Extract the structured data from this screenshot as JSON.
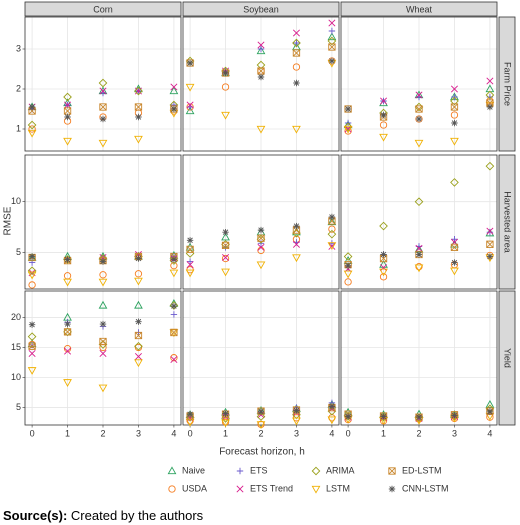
{
  "chart_data": {
    "type": "scatter",
    "xlabel": "Forecast horizon, h",
    "ylabel": "RMSE",
    "columns": [
      "Corn",
      "Soybean",
      "Wheat"
    ],
    "rows": [
      "Farm Price",
      "Harvested area",
      "Yield"
    ],
    "x": [
      0,
      1,
      2,
      3,
      4
    ],
    "xlim": [
      -0.2,
      4.2
    ],
    "xticks": [
      0,
      1,
      2,
      3,
      4
    ],
    "row_scales": [
      {
        "ylim": [
          0.45,
          3.8
        ],
        "yticks": [
          1,
          2,
          3
        ]
      },
      {
        "ylim": [
          1.4,
          14.6
        ],
        "yticks": [
          5,
          10
        ]
      },
      {
        "ylim": [
          2.1,
          24.4
        ],
        "yticks": [
          5,
          10,
          15,
          20
        ]
      }
    ],
    "grid": true,
    "series": [
      {
        "name": "Naive",
        "color": "#2ca25f",
        "marker": "triangle-up",
        "values": [
          [
            [
              1.55,
              1.65,
              1.95,
              2.0,
              1.95
            ],
            [
              1.45,
              2.4,
              2.95,
              3.05,
              3.3
            ],
            [
              1.1,
              1.65,
              1.85,
              1.8,
              2.0
            ]
          ],
          [
            [
              4.5,
              4.6,
              4.6,
              4.6,
              4.7
            ],
            [
              5.5,
              6.5,
              7.0,
              7.0,
              8.0
            ],
            [
              4.2,
              3.8,
              5.3,
              5.8,
              6.9
            ]
          ],
          [
            [
              15.6,
              20.0,
              22.0,
              22.0,
              22.3
            ],
            [
              3.8,
              4.2,
              4.5,
              4.8,
              5.5
            ],
            [
              4.2,
              3.8,
              3.9,
              3.8,
              5.5
            ]
          ]
        ]
      },
      {
        "name": "USDA",
        "color": "#f57c1f",
        "marker": "circle",
        "values": [
          [
            [
              1.0,
              1.2,
              1.3,
              1.4,
              1.45
            ],
            [
              1.55,
              2.05,
              2.45,
              2.55,
              2.7
            ],
            [
              0.95,
              1.1,
              1.25,
              1.35,
              1.7
            ]
          ],
          [
            [
              1.8,
              2.7,
              2.8,
              2.9,
              3.7
            ],
            [
              3.3,
              4.4,
              5.2,
              6.3,
              7.3
            ],
            [
              2.1,
              2.6,
              3.6,
              3.8,
              4.7
            ]
          ],
          [
            [
              15.5,
              14.8,
              15.0,
              15.0,
              13.3
            ],
            [
              2.8,
              2.6,
              2.2,
              3.3,
              3.3
            ],
            [
              3.0,
              2.8,
              3.1,
              3.2,
              3.4
            ]
          ]
        ]
      },
      {
        "name": "ETS",
        "color": "#6a5acd",
        "marker": "plus",
        "values": [
          [
            [
              1.5,
              1.6,
              1.9,
              1.95,
              1.6
            ],
            [
              1.55,
              2.45,
              3.0,
              3.15,
              3.45
            ],
            [
              1.15,
              1.7,
              1.8,
              1.8,
              1.8
            ]
          ],
          [
            [
              4.0,
              4.3,
              4.5,
              4.7,
              4.6
            ],
            [
              4.1,
              5.5,
              5.9,
              6.0,
              5.9
            ],
            [
              3.5,
              4.8,
              5.6,
              6.3,
              7.0
            ]
          ],
          [
            [
              15.4,
              19.2,
              18.5,
              17.5,
              20.5
            ],
            [
              3.5,
              3.8,
              4.2,
              5.0,
              5.8
            ],
            [
              3.8,
              3.6,
              3.5,
              3.7,
              4.5
            ]
          ]
        ]
      },
      {
        "name": "ETS Trend",
        "color": "#d81b8c",
        "marker": "x",
        "values": [
          [
            [
              1.55,
              1.6,
              1.95,
              1.95,
              2.05
            ],
            [
              1.6,
              2.45,
              3.1,
              3.4,
              3.65
            ],
            [
              1.0,
              1.7,
              1.85,
              2.0,
              2.2
            ]
          ],
          [
            [
              3.0,
              4.2,
              4.5,
              4.8,
              4.4
            ],
            [
              3.8,
              4.5,
              5.5,
              5.8,
              5.6
            ],
            [
              3.4,
              3.5,
              5.4,
              6.0,
              7.1
            ]
          ],
          [
            [
              14.0,
              14.4,
              14.0,
              13.5,
              13.0
            ],
            [
              3.2,
              3.5,
              3.8,
              4.2,
              4.8
            ],
            [
              3.4,
              3.3,
              3.2,
              3.5,
              4.2
            ]
          ]
        ]
      },
      {
        "name": "ARIMA",
        "color": "#9aa01c",
        "marker": "diamond",
        "values": [
          [
            [
              1.1,
              1.8,
              2.15,
              1.95,
              1.6
            ],
            [
              2.7,
              2.45,
              2.6,
              3.15,
              3.2
            ],
            [
              1.05,
              1.4,
              1.55,
              1.7,
              1.85
            ]
          ],
          [
            [
              3.2,
              4.3,
              4.4,
              4.6,
              4.2
            ],
            [
              4.9,
              5.8,
              6.3,
              6.9,
              6.8
            ],
            [
              4.6,
              7.6,
              10.0,
              11.9,
              13.5
            ]
          ],
          [
            [
              16.8,
              17.6,
              15.5,
              15.2,
              22.0
            ],
            [
              3.4,
              3.2,
              3.5,
              3.8,
              4.4
            ],
            [
              3.6,
              3.4,
              3.3,
              3.6,
              4.8
            ]
          ]
        ]
      },
      {
        "name": "LSTM",
        "color": "#f0b000",
        "marker": "triangle-down",
        "values": [
          [
            [
              0.9,
              0.7,
              0.65,
              0.75,
              1.4
            ],
            [
              2.05,
              1.35,
              1.0,
              1.0,
              2.65
            ],
            [
              1.0,
              0.8,
              0.65,
              0.7,
              1.6
            ]
          ],
          [
            [
              2.8,
              2.1,
              2.1,
              2.2,
              3.0
            ],
            [
              3.0,
              3.1,
              3.8,
              4.5,
              5.7
            ],
            [
              2.9,
              3.1,
              3.5,
              3.2,
              4.5
            ]
          ],
          [
            [
              11.2,
              9.2,
              8.3,
              12.5,
              17.5
            ],
            [
              2.6,
              2.5,
              2.2,
              2.8,
              3.0
            ],
            [
              3.1,
              2.9,
              2.9,
              3.3,
              3.6
            ]
          ]
        ]
      },
      {
        "name": "ED-LSTM",
        "color": "#c8862c",
        "marker": "square-x",
        "values": [
          [
            [
              1.45,
              1.45,
              1.55,
              1.55,
              1.5
            ],
            [
              2.65,
              2.4,
              2.45,
              2.9,
              3.05
            ],
            [
              1.5,
              1.3,
              1.5,
              1.55,
              1.65
            ]
          ],
          [
            [
              4.5,
              4.2,
              4.2,
              4.6,
              4.6
            ],
            [
              5.3,
              5.7,
              6.4,
              7.2,
              8.1
            ],
            [
              3.8,
              4.4,
              4.8,
              5.5,
              5.8
            ]
          ],
          [
            [
              15.2,
              17.6,
              16.0,
              17.0,
              17.5
            ],
            [
              3.6,
              3.9,
              4.4,
              4.6,
              5.0
            ],
            [
              3.9,
              3.6,
              3.4,
              3.8,
              4.4
            ]
          ]
        ]
      },
      {
        "name": "CNN-LSTM",
        "color": "#555555",
        "marker": "asterisk",
        "values": [
          [
            [
              1.55,
              1.3,
              1.25,
              1.3,
              1.5
            ],
            [
              2.65,
              2.4,
              2.3,
              2.15,
              2.7
            ],
            [
              1.5,
              1.35,
              1.25,
              1.15,
              1.55
            ]
          ],
          [
            [
              4.6,
              4.3,
              4.1,
              4.4,
              4.3
            ],
            [
              6.2,
              7.0,
              7.2,
              7.6,
              8.5
            ],
            [
              3.7,
              4.8,
              4.8,
              4.0,
              4.6
            ]
          ],
          [
            [
              18.8,
              18.9,
              18.9,
              19.3,
              21.9
            ],
            [
              3.9,
              4.0,
              4.3,
              4.5,
              5.2
            ],
            [
              3.5,
              3.5,
              3.4,
              3.7,
              4.3
            ]
          ]
        ]
      }
    ]
  },
  "caption": {
    "label": "Source(s):",
    "text": "Created by the authors"
  }
}
